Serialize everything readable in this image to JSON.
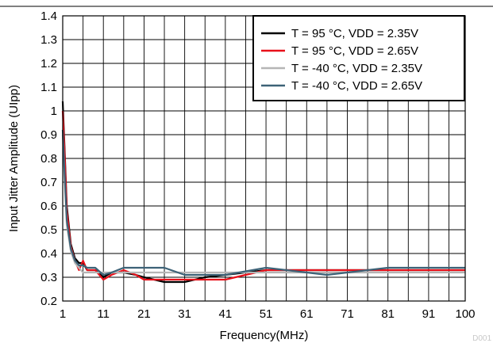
{
  "chart_data": {
    "type": "line",
    "title": "",
    "xlabel": "Frequency(MHz)",
    "ylabel": "Input Jitter Amplitude (UIpp)",
    "xlim": [
      1,
      100
    ],
    "ylim": [
      0.2,
      1.4
    ],
    "x_ticks": [
      "1",
      "11",
      "21",
      "31",
      "41",
      "51",
      "61",
      "71",
      "81",
      "91",
      "100"
    ],
    "y_ticks": [
      "0.2",
      "0.3",
      "0.4",
      "0.5",
      "0.6",
      "0.7",
      "0.8",
      "0.9",
      "1",
      "1.1",
      "1.2",
      "1.3",
      "1.4"
    ],
    "x_minor_gridlines": [
      6,
      16,
      26,
      36,
      46,
      56,
      66,
      76,
      86,
      96
    ],
    "grid": true,
    "legend_position": "top-right",
    "figure_id": "D001",
    "series": [
      {
        "name": "T = 95 °C, VDD = 2.35V",
        "color": "#000000",
        "x": [
          1,
          1.5,
          2,
          3,
          4,
          5,
          6,
          7,
          9,
          11,
          13,
          16,
          19,
          21,
          26,
          31,
          36,
          41,
          51,
          66,
          81,
          100
        ],
        "y": [
          1.04,
          0.82,
          0.6,
          0.44,
          0.38,
          0.36,
          0.36,
          0.33,
          0.33,
          0.3,
          0.32,
          0.32,
          0.31,
          0.3,
          0.28,
          0.28,
          0.3,
          0.31,
          0.33,
          0.33,
          0.33,
          0.33
        ]
      },
      {
        "name": "T = 95 °C, VDD = 2.65V",
        "color": "#e8101a",
        "x": [
          1,
          1.5,
          2,
          3,
          4,
          5,
          6,
          7,
          9,
          11,
          13,
          16,
          19,
          21,
          26,
          31,
          36,
          41,
          51,
          66,
          81,
          100
        ],
        "y": [
          1.0,
          0.8,
          0.58,
          0.43,
          0.37,
          0.33,
          0.37,
          0.33,
          0.33,
          0.29,
          0.31,
          0.33,
          0.31,
          0.29,
          0.29,
          0.29,
          0.29,
          0.29,
          0.33,
          0.33,
          0.33,
          0.33
        ]
      },
      {
        "name": "T = -40 °C, VDD = 2.35V",
        "color": "#b5b5b5",
        "x": [
          1,
          1.5,
          2,
          3,
          4,
          5,
          6,
          7,
          9,
          11,
          13,
          16,
          21,
          26,
          31,
          41,
          51,
          66,
          81,
          100
        ],
        "y": [
          0.9,
          0.7,
          0.52,
          0.41,
          0.36,
          0.34,
          0.32,
          0.32,
          0.32,
          0.32,
          0.32,
          0.32,
          0.32,
          0.32,
          0.32,
          0.32,
          0.32,
          0.32,
          0.32,
          0.32
        ]
      },
      {
        "name": "T = -40 °C, VDD = 2.65V",
        "color": "#3d6277",
        "x": [
          1,
          1.5,
          2,
          3,
          4,
          5,
          6,
          7,
          9,
          11,
          13,
          16,
          21,
          26,
          31,
          41,
          51,
          56,
          66,
          81,
          100
        ],
        "y": [
          0.92,
          0.72,
          0.54,
          0.42,
          0.37,
          0.35,
          0.35,
          0.34,
          0.34,
          0.31,
          0.32,
          0.34,
          0.34,
          0.34,
          0.31,
          0.31,
          0.34,
          0.33,
          0.31,
          0.34,
          0.34
        ]
      }
    ]
  }
}
